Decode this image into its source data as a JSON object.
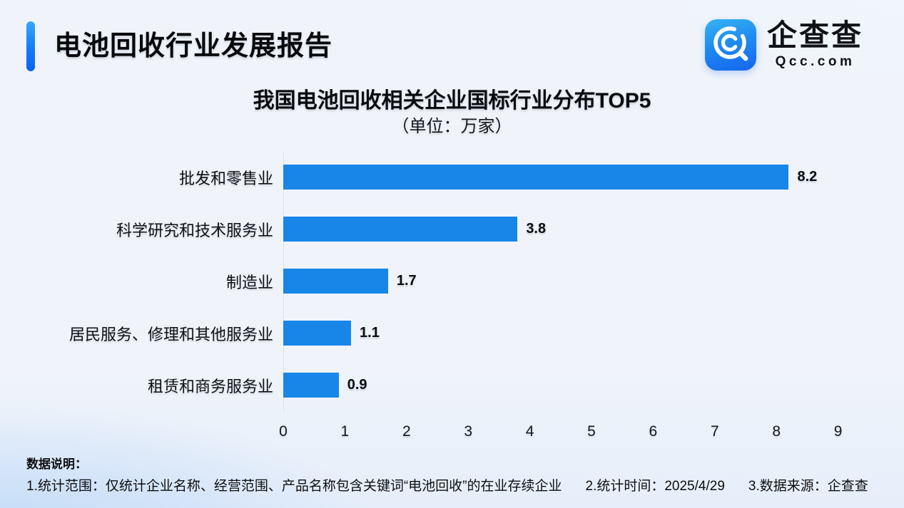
{
  "header": {
    "title": "电池回收行业发展报告"
  },
  "logo": {
    "name": "企查查",
    "domain": "Qcc.com",
    "icon": "magnifier-c-icon",
    "brand_color": "#1B84F0"
  },
  "chart_data": {
    "type": "bar",
    "orientation": "horizontal",
    "title": "我国电池回收相关企业国标行业分布TOP5",
    "subtitle": "（单位：万家）",
    "unit": "万家",
    "categories": [
      "批发和零售业",
      "科学研究和技术服务业",
      "制造业",
      "居民服务、修理和其他服务业",
      "租赁和商务服务业"
    ],
    "values": [
      8.2,
      3.8,
      1.7,
      1.1,
      0.9
    ],
    "xlabel": "",
    "ylabel": "",
    "xlim": [
      0,
      9
    ],
    "x_ticks": [
      0,
      1,
      2,
      3,
      4,
      5,
      6,
      7,
      8,
      9
    ],
    "grid": false,
    "legend": false,
    "bar_color": "#1786E8"
  },
  "footer": {
    "label": "数据说明：",
    "notes": [
      "1.统计范围：仅统计企业名称、经营范围、产品名称包含关键词“电池回收”的在业存续企业",
      "2.统计时间：2025/4/29",
      "3.数据来源：企查查"
    ]
  }
}
